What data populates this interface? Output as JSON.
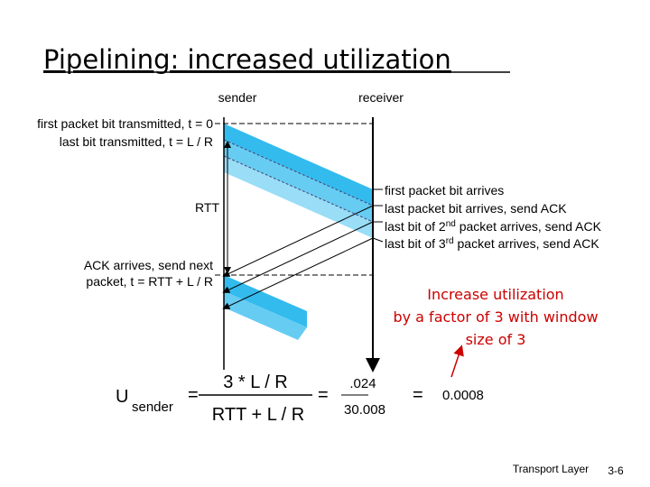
{
  "title": "Pipelining: increased utilization",
  "labels": {
    "sender": "sender",
    "receiver": "receiver"
  },
  "sender_events": [
    "first packet bit transmitted, t = 0",
    "last bit transmitted, t = L / R",
    "RTT",
    "ACK arrives, send next",
    "packet, t = RTT + L / R"
  ],
  "receiver_events": {
    "first": "first packet bit arrives",
    "last": "last packet bit arrives, send ACK",
    "second": {
      "before": "last bit of 2",
      "sup": "nd",
      "after": " packet arrives, send ACK"
    },
    "third": {
      "before": "last bit of 3",
      "sup": "rd",
      "after": " packet arrives, send ACK"
    }
  },
  "callout": [
    "Increase utilization",
    "by a factor of 3 with window",
    "size of 3"
  ],
  "formula": {
    "u": "U",
    "sub": "sender",
    "eq": "=",
    "num": "3 * L / R",
    "den": "RTT + L / R",
    "num2": ".024",
    "den2": "30.008",
    "result": "0.0008"
  },
  "footer": {
    "label": "Transport Layer",
    "page": "3-6"
  }
}
